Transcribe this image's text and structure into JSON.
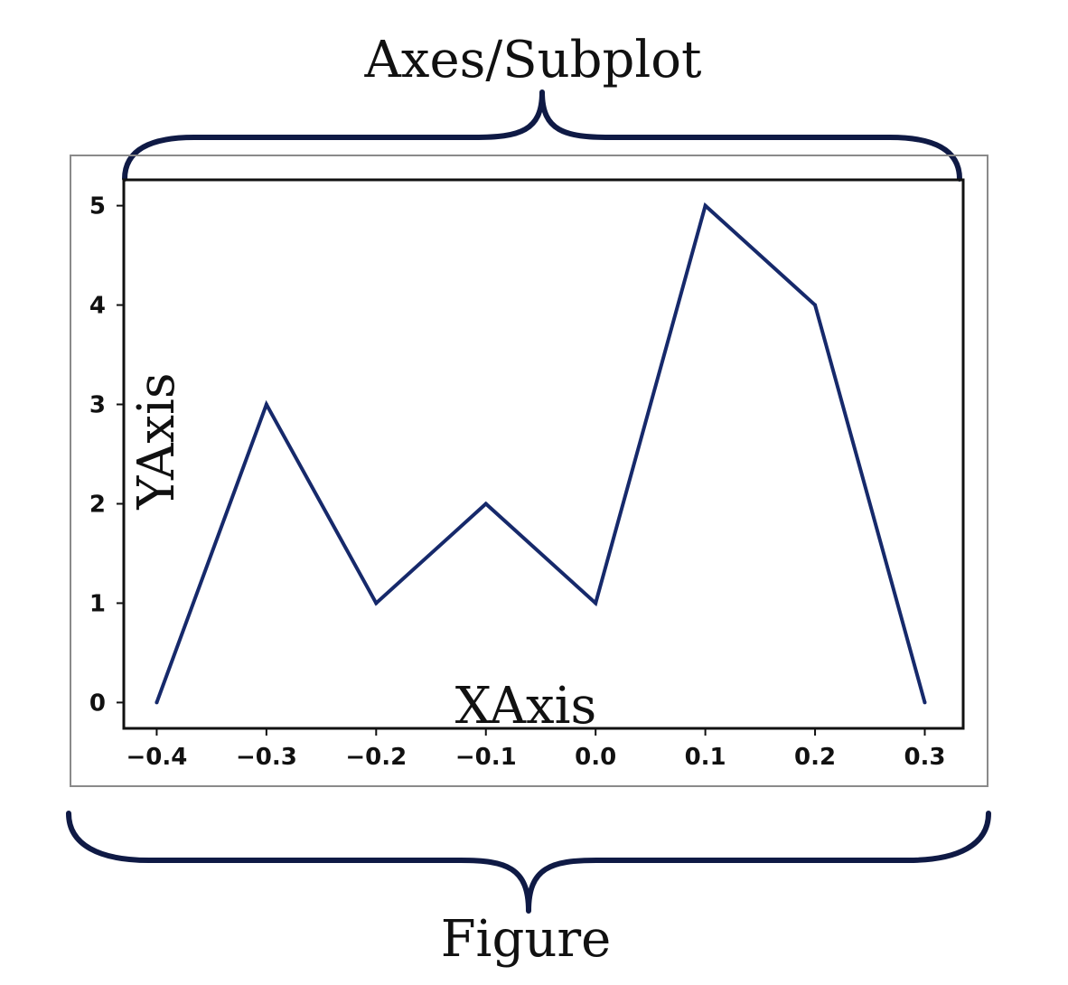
{
  "labels": {
    "axes_subplot": "Axes/Subplot",
    "figure": "Figure",
    "x_axis": "XAxis",
    "y_axis": "YAxis"
  },
  "colors": {
    "line": "#16296b",
    "brace": "#0f1a45",
    "figure_border": "#8a8a8a",
    "axes_border": "#111111"
  },
  "chart_data": {
    "type": "line",
    "title": "",
    "xlabel": "XAxis",
    "ylabel": "YAxis",
    "x": [
      -0.4,
      -0.3,
      -0.2,
      -0.1,
      0.0,
      0.1,
      0.2,
      0.3
    ],
    "series": [
      {
        "values": [
          0,
          3,
          1,
          2,
          1,
          5,
          4,
          0
        ]
      }
    ],
    "xlim": [
      -0.43,
      0.335
    ],
    "ylim": [
      -0.26,
      5.26
    ],
    "xticks": [
      "−0.4",
      "−0.3",
      "−0.2",
      "−0.1",
      "0.0",
      "0.1",
      "0.2",
      "0.3"
    ],
    "yticks": [
      "0",
      "1",
      "2",
      "3",
      "4",
      "5"
    ],
    "grid": false
  }
}
